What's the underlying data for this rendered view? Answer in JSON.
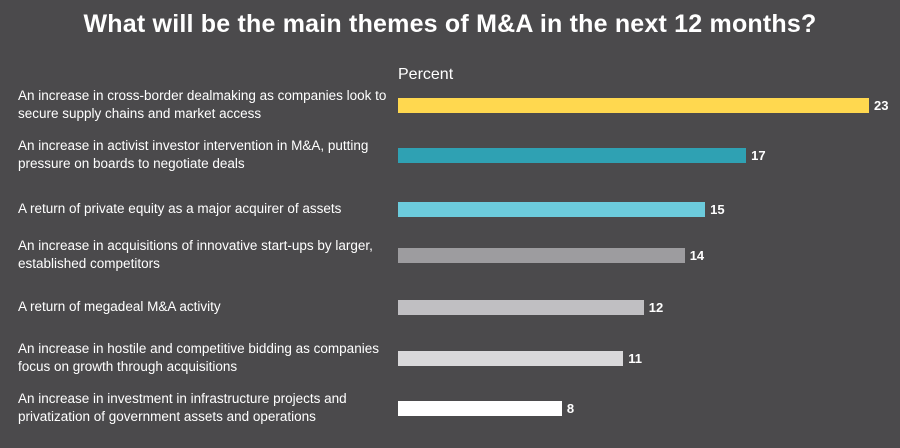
{
  "chart_data": {
    "type": "bar",
    "orientation": "horizontal",
    "title": "What will be the main themes of M&A in the next 12 months?",
    "subtitle": "Percent",
    "xlabel": "",
    "ylabel": "",
    "xlim": [
      0,
      23
    ],
    "grid": false,
    "categories": [
      "An increase in cross-border dealmaking as companies look to secure supply chains and market access",
      "An increase in activist investor intervention in M&A, putting pressure on boards to negotiate deals",
      "A return of private equity as a major acquirer of assets",
      "An increase in acquisitions of innovative start-ups by larger, established competitors",
      "A return of megadeal M&A activity",
      "An increase in hostile and competitive bidding as companies focus on growth through acquisitions",
      "An increase in investment in infrastructure projects and privatization of government assets and operations"
    ],
    "values": [
      23,
      17,
      15,
      14,
      12,
      11,
      8
    ],
    "colors": [
      "#ffd84f",
      "#2fa1b3",
      "#6ccbdc",
      "#9d9c9f",
      "#c0bfc2",
      "#d9d8da",
      "#ffffff"
    ]
  }
}
